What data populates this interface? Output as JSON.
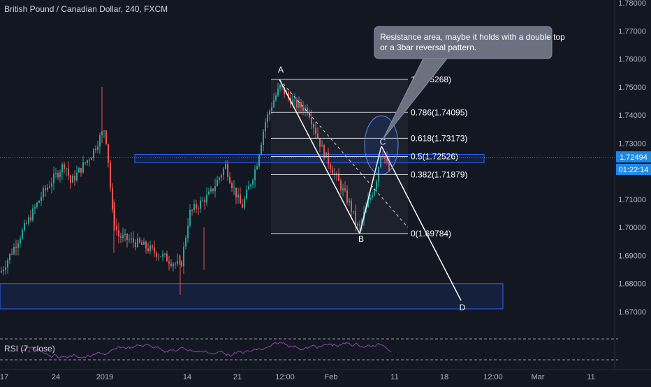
{
  "header": {
    "title": "British Pound / Canadian Dollar, 240, FXCM"
  },
  "price_axis": {
    "ticks": [
      "1.78000",
      "1.77000",
      "1.76000",
      "1.75000",
      "1.74000",
      "1.73000",
      "1.72000",
      "1.71000",
      "1.70000",
      "1.69000",
      "1.68000",
      "1.67000"
    ],
    "current_price": "1.72494",
    "countdown": "01:22:14"
  },
  "time_axis": {
    "labels": [
      "17",
      "24",
      "2019",
      "14",
      "21",
      "12:00",
      "Feb",
      "11",
      "18",
      "12:00",
      "Mar",
      "11"
    ]
  },
  "fib": {
    "levels": [
      {
        "ratio": 1,
        "price": 1.75268,
        "label": "1(1.75268)"
      },
      {
        "ratio": 0.786,
        "price": 1.74095,
        "label": "0.786(1.74095)"
      },
      {
        "ratio": 0.618,
        "price": 1.73173,
        "label": "0.618(1.73173)"
      },
      {
        "ratio": 0.5,
        "price": 1.72526,
        "label": "0.5(1.72526)"
      },
      {
        "ratio": 0.382,
        "price": 1.71879,
        "label": "0.382(1.71879)"
      },
      {
        "ratio": 0,
        "price": 1.69784,
        "label": "0(1.69784)"
      }
    ]
  },
  "pattern": {
    "points": [
      {
        "label": "A",
        "price": 1.7527
      },
      {
        "label": "B",
        "price": 1.6978
      },
      {
        "label": "C",
        "price": 1.729
      },
      {
        "label": "D",
        "price": 1.674
      }
    ]
  },
  "zones": [
    {
      "name": "resistance-zone",
      "from": 1.723,
      "to": 1.726
    },
    {
      "name": "support-zone",
      "from": 1.671,
      "to": 1.68
    }
  ],
  "annotation": {
    "text_line1": "Resistance area, maybe it holds with a double top",
    "text_line2": "or a 3bar reversal pattern."
  },
  "rsi": {
    "label": "RSI (7, close)"
  },
  "colors": {
    "background": "#131722",
    "bull": "#26a69a",
    "bear": "#ef5350",
    "rsi_line": "#8e44ad",
    "zone_border": "#2962ff",
    "current_price_line": "#1e88e5"
  },
  "chart_data": {
    "type": "line",
    "title": "British Pound / Canadian Dollar, 240, FXCM",
    "xlabel": "",
    "ylabel": "",
    "ylim": [
      1.665,
      1.78
    ],
    "grid": false,
    "series": [
      {
        "x": [
          "17",
          "24",
          "2019",
          "14",
          "21",
          "12:00",
          "Feb",
          "11"
        ],
        "y": [
          1.687,
          1.722,
          1.738,
          1.705,
          1.722,
          1.75,
          1.725,
          1.718
        ]
      }
    ]
  }
}
